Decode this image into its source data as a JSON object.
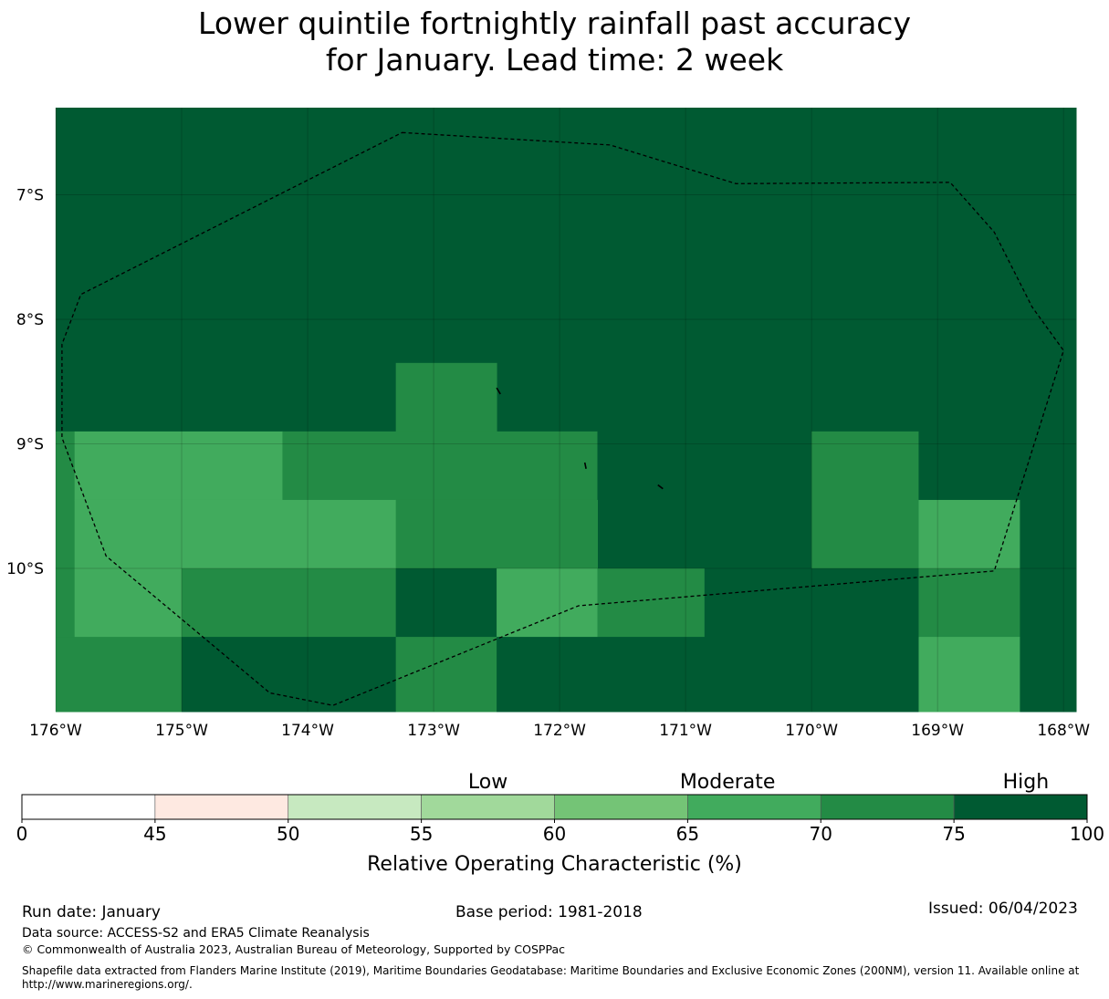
{
  "title": {
    "line1": "Lower quintile fortnightly rainfall past accuracy",
    "line2": "for January. Lead time: 2 week"
  },
  "map": {
    "lon_range": [
      -176,
      -167.9
    ],
    "lat_range": [
      -11.15,
      -6.3
    ],
    "x_ticks": [
      "176°W",
      "175°W",
      "174°W",
      "173°W",
      "172°W",
      "171°W",
      "170°W",
      "169°W",
      "168°W"
    ],
    "x_tick_values": [
      -176,
      -175,
      -174,
      -173,
      -172,
      -171,
      -170,
      -169,
      -168
    ],
    "y_ticks": [
      "7°S",
      "8°S",
      "9°S",
      "10°S"
    ],
    "y_tick_values": [
      -7,
      -8,
      -9,
      -10
    ],
    "cell_colors": {
      "c70": "#41ab5d",
      "c75": "#238b45",
      "c100": "#005a32"
    },
    "cells": [
      {
        "lon": [
          -176,
          -167.9
        ],
        "lat": [
          -8.9,
          -6.3
        ],
        "cls": "c100"
      },
      {
        "lon": [
          -173.3,
          -172.5
        ],
        "lat": [
          -8.9,
          -8.35
        ],
        "cls": "c75"
      },
      {
        "lon": [
          -176,
          -175.85
        ],
        "lat": [
          -10.55,
          -8.9
        ],
        "cls": "c75"
      },
      {
        "lon": [
          -175.85,
          -174.2
        ],
        "lat": [
          -9.45,
          -8.9
        ],
        "cls": "c70"
      },
      {
        "lon": [
          -174.2,
          -171.7
        ],
        "lat": [
          -9.45,
          -8.9
        ],
        "cls": "c75"
      },
      {
        "lon": [
          -171.7,
          -170.0
        ],
        "lat": [
          -10.0,
          -8.9
        ],
        "cls": "c100"
      },
      {
        "lon": [
          -170.0,
          -169.15
        ],
        "lat": [
          -10.0,
          -8.9
        ],
        "cls": "c75"
      },
      {
        "lon": [
          -169.15,
          -168.35
        ],
        "lat": [
          -9.45,
          -8.9
        ],
        "cls": "c100"
      },
      {
        "lon": [
          -168.35,
          -167.9
        ],
        "lat": [
          -11.15,
          -8.9
        ],
        "cls": "c100"
      },
      {
        "lon": [
          -175.85,
          -173.3
        ],
        "lat": [
          -10.0,
          -9.45
        ],
        "cls": "c70"
      },
      {
        "lon": [
          -173.3,
          -171.7
        ],
        "lat": [
          -10.0,
          -9.45
        ],
        "cls": "c75"
      },
      {
        "lon": [
          -169.15,
          -168.35
        ],
        "lat": [
          -10.0,
          -9.45
        ],
        "cls": "c70"
      },
      {
        "lon": [
          -175.85,
          -175.0
        ],
        "lat": [
          -10.55,
          -10.0
        ],
        "cls": "c70"
      },
      {
        "lon": [
          -175.0,
          -173.3
        ],
        "lat": [
          -10.55,
          -10.0
        ],
        "cls": "c75"
      },
      {
        "lon": [
          -173.3,
          -172.5
        ],
        "lat": [
          -10.55,
          -10.0
        ],
        "cls": "c100"
      },
      {
        "lon": [
          -172.5,
          -171.7
        ],
        "lat": [
          -10.55,
          -10.0
        ],
        "cls": "c70"
      },
      {
        "lon": [
          -171.7,
          -170.85
        ],
        "lat": [
          -10.55,
          -10.0
        ],
        "cls": "c75"
      },
      {
        "lon": [
          -170.85,
          -169.15
        ],
        "lat": [
          -10.55,
          -10.0
        ],
        "cls": "c100"
      },
      {
        "lon": [
          -169.15,
          -168.35
        ],
        "lat": [
          -10.55,
          -10.0
        ],
        "cls": "c75"
      },
      {
        "lon": [
          -176,
          -175.0
        ],
        "lat": [
          -11.15,
          -10.55
        ],
        "cls": "c75"
      },
      {
        "lon": [
          -175.0,
          -173.3
        ],
        "lat": [
          -11.15,
          -10.55
        ],
        "cls": "c100"
      },
      {
        "lon": [
          -173.3,
          -172.5
        ],
        "lat": [
          -11.15,
          -10.55
        ],
        "cls": "c75"
      },
      {
        "lon": [
          -172.5,
          -169.15
        ],
        "lat": [
          -11.15,
          -10.55
        ],
        "cls": "c100"
      },
      {
        "lon": [
          -169.15,
          -168.35
        ],
        "lat": [
          -11.15,
          -10.55
        ],
        "cls": "c70"
      }
    ],
    "eez_boundary": [
      [
        -173.25,
        -6.5
      ],
      [
        -171.6,
        -6.6
      ],
      [
        -170.6,
        -6.91
      ],
      [
        -168.9,
        -6.9
      ],
      [
        -168.55,
        -7.3
      ],
      [
        -168.25,
        -7.9
      ],
      [
        -168.0,
        -8.25
      ],
      [
        -168.55,
        -10.02
      ],
      [
        -171.85,
        -10.3
      ],
      [
        -173.8,
        -11.1
      ],
      [
        -174.3,
        -11.0
      ],
      [
        -175.6,
        -9.9
      ],
      [
        -175.95,
        -8.95
      ],
      [
        -175.95,
        -8.2
      ],
      [
        -175.8,
        -7.8
      ]
    ],
    "islands": [
      [
        [
          -172.5,
          -8.55
        ],
        [
          -172.47,
          -8.6
        ]
      ],
      [
        [
          -171.8,
          -9.15
        ],
        [
          -171.79,
          -9.2
        ]
      ],
      [
        [
          -171.22,
          -9.33
        ],
        [
          -171.18,
          -9.36
        ]
      ]
    ]
  },
  "colorbar": {
    "bounds": [
      0,
      45,
      50,
      55,
      60,
      65,
      70,
      75,
      100
    ],
    "colors": [
      "#ffffff",
      "#fee9e1",
      "#c7e9c0",
      "#a1d99b",
      "#74c476",
      "#41ab5d",
      "#238b45",
      "#005a32"
    ],
    "tick_labels": [
      "0",
      "45",
      "50",
      "55",
      "60",
      "65",
      "70",
      "75",
      "100"
    ],
    "category_labels": [
      {
        "text": "Low",
        "value": 57.5
      },
      {
        "text": "Moderate",
        "value": 66.5
      },
      {
        "text": "High",
        "value": 88.5
      }
    ],
    "label": "Relative Operating Characteristic (%)"
  },
  "footer": {
    "run_date": "Run date: January",
    "base_period": "Base period: 1981-2018",
    "issued": "Issued: 06/04/2023",
    "data_source": "Data source: ACCESS-S2 and ERA5 Climate Reanalysis",
    "copyright": "© Commonwealth of Australia 2023, Australian Bureau of Meteorology, Supported by COSPPac",
    "shapefile": "Shapefile data extracted from Flanders Marine Institute (2019), Maritime Boundaries Geodatabase: Maritime Boundaries and Exclusive Economic Zones (200NM), version 11. Available online at http://www.marineregions.org/."
  }
}
